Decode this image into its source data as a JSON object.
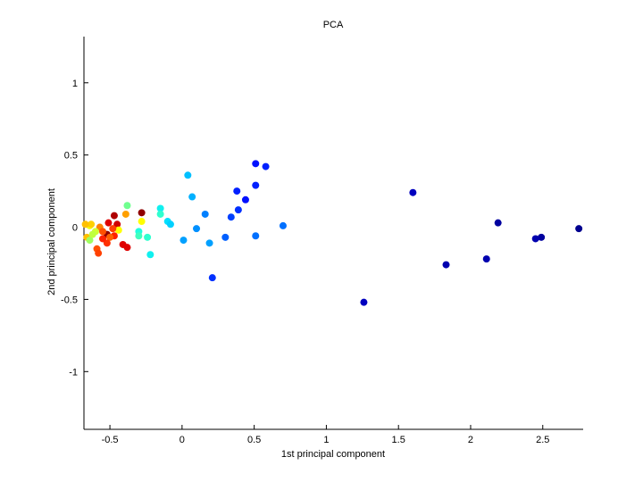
{
  "chart_data": {
    "type": "scatter",
    "title": "PCA",
    "xlabel": "1st principal component",
    "ylabel": "2nd principal component",
    "xlim": [
      -0.68,
      2.78
    ],
    "ylim": [
      -1.4,
      1.32
    ],
    "xticks": [
      -0.5,
      0,
      0.5,
      1,
      1.5,
      2,
      2.5
    ],
    "xtick_labels": [
      "-0.5",
      "0",
      "0.5",
      "1",
      "1.5",
      "2",
      "2.5"
    ],
    "yticks": [
      -1,
      -0.5,
      0,
      0.5,
      1
    ],
    "ytick_labels": [
      "-1",
      "-0.5",
      "0",
      "0.5",
      "1"
    ],
    "grid": false,
    "legend": "none",
    "colormap": "jet",
    "points": [
      {
        "x": 2.75,
        "y": -0.01,
        "color": "#00008f"
      },
      {
        "x": 2.49,
        "y": -0.07,
        "color": "#00009f"
      },
      {
        "x": 2.45,
        "y": -0.08,
        "color": "#0000af"
      },
      {
        "x": 2.19,
        "y": 0.03,
        "color": "#00009f"
      },
      {
        "x": 2.11,
        "y": -0.22,
        "color": "#0000af"
      },
      {
        "x": 1.83,
        "y": -0.26,
        "color": "#0000af"
      },
      {
        "x": 1.6,
        "y": 0.24,
        "color": "#0000bf"
      },
      {
        "x": 1.26,
        "y": -0.52,
        "color": "#0000bf"
      },
      {
        "x": 0.51,
        "y": 0.44,
        "color": "#0010ff"
      },
      {
        "x": 0.58,
        "y": 0.42,
        "color": "#0020ff"
      },
      {
        "x": 0.51,
        "y": 0.29,
        "color": "#0020ff"
      },
      {
        "x": 0.38,
        "y": 0.25,
        "color": "#0020ff"
      },
      {
        "x": 0.44,
        "y": 0.19,
        "color": "#0010ff"
      },
      {
        "x": 0.39,
        "y": 0.12,
        "color": "#0030ff"
      },
      {
        "x": 0.34,
        "y": 0.07,
        "color": "#0040ff"
      },
      {
        "x": 0.7,
        "y": 0.01,
        "color": "#0070ff"
      },
      {
        "x": 0.51,
        "y": -0.06,
        "color": "#0070ff"
      },
      {
        "x": 0.3,
        "y": -0.07,
        "color": "#0060ff"
      },
      {
        "x": 0.21,
        "y": -0.35,
        "color": "#0030ff"
      },
      {
        "x": 0.04,
        "y": 0.36,
        "color": "#00c0ff"
      },
      {
        "x": 0.07,
        "y": 0.21,
        "color": "#00b0ff"
      },
      {
        "x": 0.16,
        "y": 0.09,
        "color": "#0080ff"
      },
      {
        "x": 0.1,
        "y": -0.01,
        "color": "#0090ff"
      },
      {
        "x": 0.01,
        "y": -0.09,
        "color": "#00a0ff"
      },
      {
        "x": 0.19,
        "y": -0.11,
        "color": "#00a0ff"
      },
      {
        "x": -0.15,
        "y": 0.13,
        "color": "#10f0ef"
      },
      {
        "x": -0.15,
        "y": 0.09,
        "color": "#30ffcf"
      },
      {
        "x": -0.1,
        "y": 0.04,
        "color": "#00e0ff"
      },
      {
        "x": -0.08,
        "y": 0.02,
        "color": "#00d0ff"
      },
      {
        "x": -0.3,
        "y": -0.03,
        "color": "#20ffdf"
      },
      {
        "x": -0.3,
        "y": -0.06,
        "color": "#40ffbf"
      },
      {
        "x": -0.24,
        "y": -0.07,
        "color": "#30ffcf"
      },
      {
        "x": -0.22,
        "y": -0.19,
        "color": "#10f0ef"
      },
      {
        "x": -0.38,
        "y": 0.15,
        "color": "#70ff8f"
      },
      {
        "x": -0.28,
        "y": 0.04,
        "color": "#ffff00"
      },
      {
        "x": -0.28,
        "y": 0.1,
        "color": "#8f0000"
      },
      {
        "x": -0.39,
        "y": 0.09,
        "color": "#ffa000"
      },
      {
        "x": -0.41,
        "y": -0.12,
        "color": "#df0000"
      },
      {
        "x": -0.38,
        "y": -0.14,
        "color": "#df0000"
      },
      {
        "x": -0.47,
        "y": 0.08,
        "color": "#af0000"
      },
      {
        "x": -0.45,
        "y": 0.02,
        "color": "#cf0000"
      },
      {
        "x": -0.44,
        "y": -0.02,
        "color": "#ffff00"
      },
      {
        "x": -0.48,
        "y": -0.01,
        "color": "#ff4000"
      },
      {
        "x": -0.47,
        "y": -0.06,
        "color": "#ff2000"
      },
      {
        "x": -0.51,
        "y": 0.03,
        "color": "#df0000"
      },
      {
        "x": -0.52,
        "y": -0.05,
        "color": "#8f0000"
      },
      {
        "x": -0.5,
        "y": -0.07,
        "color": "#ff6000"
      },
      {
        "x": -0.52,
        "y": -0.11,
        "color": "#ff3000"
      },
      {
        "x": -0.55,
        "y": -0.08,
        "color": "#ff2000"
      },
      {
        "x": -0.57,
        "y": 0.0,
        "color": "#ff8000"
      },
      {
        "x": -0.55,
        "y": -0.03,
        "color": "#ff5000"
      },
      {
        "x": -0.59,
        "y": -0.15,
        "color": "#ff5000"
      },
      {
        "x": -0.58,
        "y": -0.18,
        "color": "#ff4000"
      },
      {
        "x": -0.6,
        "y": -0.03,
        "color": "#cfff30"
      },
      {
        "x": -0.64,
        "y": 0.01,
        "color": "#efff10"
      },
      {
        "x": -0.63,
        "y": 0.02,
        "color": "#ffd000"
      },
      {
        "x": -0.66,
        "y": -0.07,
        "color": "#ffc000"
      },
      {
        "x": -0.64,
        "y": -0.09,
        "color": "#9fff60"
      },
      {
        "x": -0.62,
        "y": -0.05,
        "color": "#bfff40"
      },
      {
        "x": -0.67,
        "y": 0.02,
        "color": "#ffc000"
      }
    ]
  }
}
